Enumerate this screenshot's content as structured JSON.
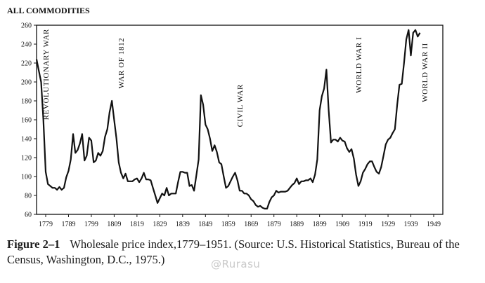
{
  "chart_data": {
    "type": "line",
    "title": "ALL COMMODITIES",
    "xlim": [
      1775,
      1953
    ],
    "ylim": [
      60,
      260
    ],
    "y_ticks": [
      60,
      80,
      100,
      120,
      140,
      160,
      180,
      200,
      220,
      240,
      260
    ],
    "x_ticks": [
      1779,
      1789,
      1799,
      1809,
      1819,
      1829,
      1839,
      1849,
      1859,
      1869,
      1879,
      1889,
      1899,
      1909,
      1919,
      1929,
      1939,
      1949
    ],
    "x_tick_labels": [
      "1779",
      "1789",
      "1799",
      "1809",
      "1819",
      "1829",
      "1839",
      "1849",
      "1859",
      "1869",
      "1879",
      "1889",
      "1899",
      "1909",
      "1919",
      "1929",
      "1939",
      "1949"
    ],
    "y_tick_labels": [
      "60",
      "80",
      "100",
      "120",
      "140",
      "160",
      "180",
      "200",
      "220",
      "240",
      "260"
    ],
    "annotations": [
      {
        "text": "Revolutionary War",
        "x": 1779,
        "y": 208
      },
      {
        "text": "War of 1812",
        "x": 1812,
        "y": 220
      },
      {
        "text": "Civil War",
        "x": 1864,
        "y": 175
      },
      {
        "text": "World War I",
        "x": 1916,
        "y": 218
      },
      {
        "text": "World War II",
        "x": 1945,
        "y": 210
      }
    ],
    "series": [
      {
        "values": [
          [
            1775,
            224
          ],
          [
            1776,
            212
          ],
          [
            1777,
            200
          ],
          [
            1778,
            160
          ],
          [
            1779,
            105
          ],
          [
            1780,
            92
          ],
          [
            1781,
            90
          ],
          [
            1782,
            88
          ],
          [
            1783,
            88
          ],
          [
            1784,
            86
          ],
          [
            1785,
            89
          ],
          [
            1786,
            86
          ],
          [
            1787,
            88
          ],
          [
            1788,
            99
          ],
          [
            1789,
            106
          ],
          [
            1790,
            118
          ],
          [
            1791,
            145
          ],
          [
            1792,
            125
          ],
          [
            1793,
            128
          ],
          [
            1794,
            135
          ],
          [
            1795,
            145
          ],
          [
            1796,
            117
          ],
          [
            1797,
            122
          ],
          [
            1798,
            141
          ],
          [
            1799,
            138
          ],
          [
            1800,
            115
          ],
          [
            1801,
            117
          ],
          [
            1802,
            125
          ],
          [
            1803,
            122
          ],
          [
            1804,
            127
          ],
          [
            1805,
            142
          ],
          [
            1806,
            150
          ],
          [
            1807,
            168
          ],
          [
            1808,
            180
          ],
          [
            1809,
            160
          ],
          [
            1810,
            140
          ],
          [
            1811,
            115
          ],
          [
            1812,
            104
          ],
          [
            1813,
            98
          ],
          [
            1814,
            103
          ],
          [
            1815,
            95
          ],
          [
            1816,
            95
          ],
          [
            1817,
            95
          ],
          [
            1818,
            97
          ],
          [
            1819,
            98
          ],
          [
            1820,
            94
          ],
          [
            1821,
            98
          ],
          [
            1822,
            104
          ],
          [
            1823,
            97
          ],
          [
            1824,
            97
          ],
          [
            1825,
            96
          ],
          [
            1826,
            88
          ],
          [
            1827,
            80
          ],
          [
            1828,
            72
          ],
          [
            1829,
            77
          ],
          [
            1830,
            82
          ],
          [
            1831,
            80
          ],
          [
            1832,
            88
          ],
          [
            1833,
            80
          ],
          [
            1834,
            82
          ],
          [
            1835,
            82
          ],
          [
            1836,
            82
          ],
          [
            1837,
            94
          ],
          [
            1838,
            105
          ],
          [
            1839,
            105
          ],
          [
            1840,
            104
          ],
          [
            1841,
            104
          ],
          [
            1842,
            90
          ],
          [
            1843,
            91
          ],
          [
            1844,
            85
          ],
          [
            1845,
            101
          ],
          [
            1846,
            118
          ],
          [
            1847,
            186
          ],
          [
            1848,
            176
          ],
          [
            1849,
            155
          ],
          [
            1850,
            150
          ],
          [
            1851,
            140
          ],
          [
            1852,
            127
          ],
          [
            1853,
            133
          ],
          [
            1854,
            126
          ],
          [
            1855,
            115
          ],
          [
            1856,
            113
          ],
          [
            1857,
            100
          ],
          [
            1858,
            88
          ],
          [
            1859,
            90
          ],
          [
            1860,
            95
          ],
          [
            1861,
            100
          ],
          [
            1862,
            104
          ],
          [
            1863,
            96
          ],
          [
            1864,
            85
          ],
          [
            1865,
            85
          ],
          [
            1866,
            82
          ],
          [
            1867,
            82
          ],
          [
            1868,
            80
          ],
          [
            1869,
            76
          ],
          [
            1870,
            74
          ],
          [
            1871,
            70
          ],
          [
            1872,
            68
          ],
          [
            1873,
            69
          ],
          [
            1874,
            67
          ],
          [
            1875,
            66
          ],
          [
            1876,
            66
          ],
          [
            1877,
            73
          ],
          [
            1878,
            78
          ],
          [
            1879,
            80
          ],
          [
            1880,
            85
          ],
          [
            1881,
            83
          ],
          [
            1882,
            84
          ],
          [
            1883,
            84
          ],
          [
            1884,
            84
          ],
          [
            1885,
            85
          ],
          [
            1886,
            88
          ],
          [
            1887,
            91
          ],
          [
            1888,
            93
          ],
          [
            1889,
            98
          ],
          [
            1890,
            92
          ],
          [
            1891,
            95
          ],
          [
            1892,
            95
          ],
          [
            1893,
            96
          ],
          [
            1894,
            96
          ],
          [
            1895,
            98
          ],
          [
            1896,
            94
          ],
          [
            1897,
            102
          ],
          [
            1898,
            118
          ],
          [
            1899,
            170
          ],
          [
            1900,
            185
          ],
          [
            1901,
            193
          ],
          [
            1902,
            213
          ],
          [
            1903,
            170
          ],
          [
            1904,
            136
          ],
          [
            1905,
            139
          ],
          [
            1906,
            139
          ],
          [
            1907,
            137
          ],
          [
            1908,
            141
          ],
          [
            1909,
            138
          ],
          [
            1910,
            137
          ],
          [
            1911,
            130
          ],
          [
            1912,
            126
          ],
          [
            1913,
            129
          ],
          [
            1914,
            119
          ],
          [
            1915,
            102
          ],
          [
            1916,
            90
          ],
          [
            1917,
            95
          ],
          [
            1918,
            104
          ],
          [
            1919,
            108
          ],
          [
            1920,
            113
          ],
          [
            1921,
            116
          ],
          [
            1922,
            116
          ],
          [
            1923,
            110
          ],
          [
            1924,
            105
          ],
          [
            1925,
            103
          ],
          [
            1926,
            110
          ],
          [
            1927,
            122
          ],
          [
            1928,
            134
          ],
          [
            1929,
            139
          ],
          [
            1930,
            141
          ],
          [
            1931,
            146
          ],
          [
            1932,
            150
          ],
          [
            1933,
            176
          ],
          [
            1934,
            197
          ],
          [
            1935,
            198
          ],
          [
            1936,
            220
          ],
          [
            1937,
            245
          ],
          [
            1938,
            255
          ],
          [
            1939,
            228
          ],
          [
            1940,
            252
          ],
          [
            1941,
            255
          ],
          [
            1942,
            248
          ],
          [
            1943,
            252
          ]
        ]
      }
    ],
    "line_color": "#111111"
  },
  "caption": {
    "figure_label": "Figure 2–1",
    "text": "Wholesale price index,1779–1951. (Source: U.S. Historical Statistics, Bureau of the Census, Washington, D.C., 1975.)"
  },
  "watermark": "@Rurasu"
}
